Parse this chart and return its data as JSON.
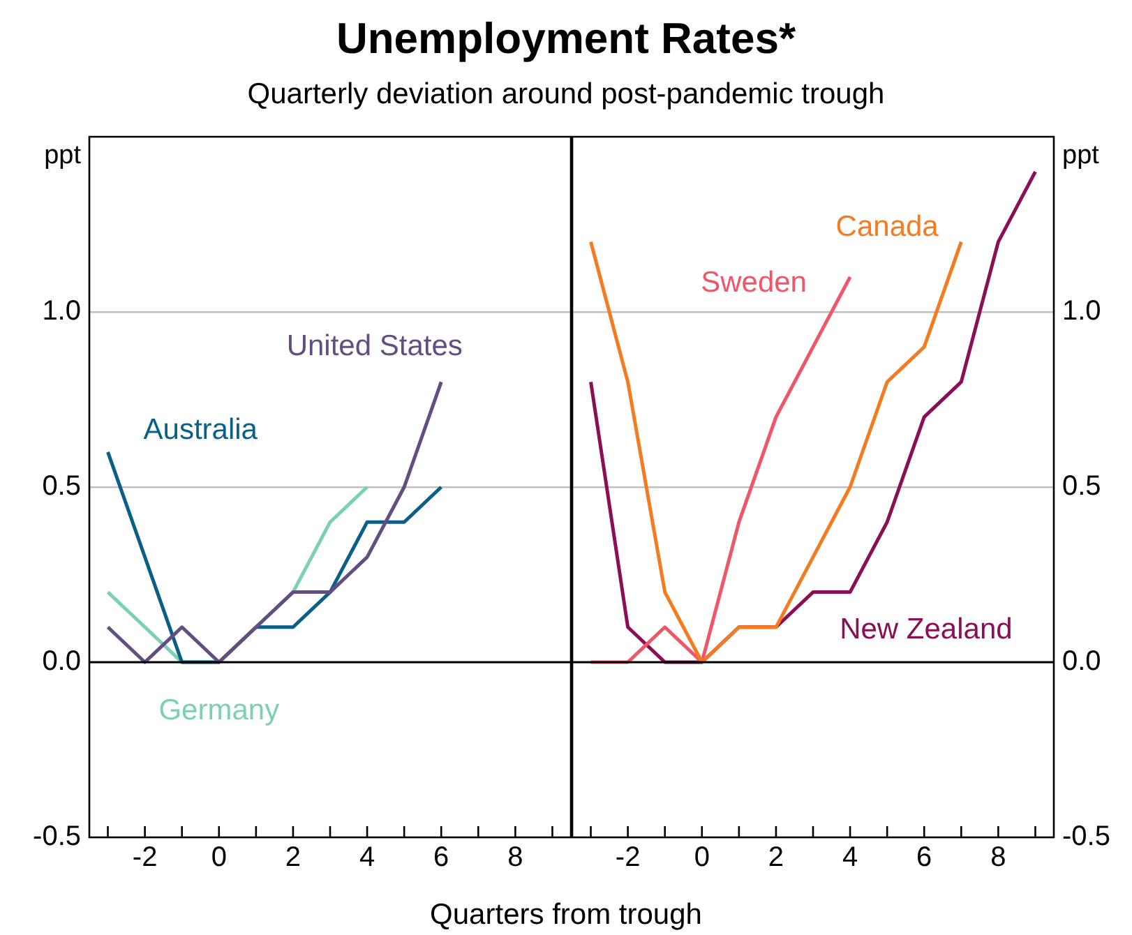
{
  "chart_data": [
    {
      "type": "line",
      "title": "Unemployment Rates*",
      "subtitle": "Quarterly deviation around post-pandemic trough",
      "xlabel": "Quarters from trough",
      "ylabel": "ppt",
      "x": [
        -3,
        -2,
        -1,
        0,
        1,
        2,
        3,
        4,
        5,
        6
      ],
      "series": [
        {
          "name": "United States",
          "color": "#624e80",
          "values": [
            0.1,
            0,
            0.1,
            0,
            0.1,
            0.2,
            0.2,
            0.3,
            0.5,
            0.8
          ]
        },
        {
          "name": "Australia",
          "color": "#0a5f86",
          "values": [
            0.6,
            0.3,
            0,
            0,
            0.1,
            0.1,
            0.2,
            0.4,
            0.4,
            0.5
          ]
        },
        {
          "name": "Germany",
          "color": "#7dd0b4",
          "values": [
            0.2,
            0.1,
            0,
            0,
            0.1,
            0.2,
            0.4,
            0.5,
            null,
            null
          ]
        }
      ],
      "xlim": [
        -3.5,
        9.5
      ],
      "xticks": [
        {
          "value": -3,
          "label": null
        },
        -2,
        {
          "value": -1,
          "label": null
        },
        0,
        {
          "value": 1,
          "label": null
        },
        2,
        {
          "value": 3,
          "label": null
        },
        4,
        {
          "value": 5,
          "label": null
        },
        6,
        {
          "value": 7,
          "label": null
        },
        8,
        {
          "value": 9,
          "label": null
        }
      ],
      "ylim": [
        -0.5,
        1.5
      ],
      "yticks": [
        {
          "value": -0.5,
          "label": "-0.5"
        },
        {
          "value": 0,
          "label": "0.0"
        },
        {
          "value": 0.5,
          "label": "0.5"
        },
        {
          "value": 1,
          "label": "1.0"
        }
      ],
      "grid": "y",
      "ref_lines": [
        {
          "axis": "y",
          "value": 0,
          "color": "#000000"
        }
      ],
      "legend": false,
      "marker": "none",
      "line_style": "solid"
    },
    {
      "type": "line",
      "ylabel": "ppt",
      "x": [
        -3,
        -2,
        -1,
        0,
        1,
        2,
        3,
        4,
        5,
        6,
        7,
        8,
        9
      ],
      "series": [
        {
          "name": "Canada",
          "color": "#f47b20",
          "values": [
            1.2,
            0.8,
            0.2,
            0,
            0.1,
            0.1,
            0.3,
            0.5,
            0.8,
            0.9,
            1.2,
            null,
            null
          ]
        },
        {
          "name": "Sweden",
          "color": "#f0566a",
          "values": [
            0,
            0,
            0.1,
            0,
            0.4,
            0.7,
            0.9,
            1.1,
            null,
            null,
            null,
            null,
            null
          ]
        },
        {
          "name": "New Zealand",
          "color": "#8a0f55",
          "values": [
            0.8,
            0.1,
            0,
            0,
            0.1,
            0.1,
            0.2,
            0.2,
            0.4,
            0.7,
            0.8,
            1.2,
            1.4
          ]
        }
      ],
      "xlim": [
        -3.5,
        9.5
      ],
      "xticks": [
        {
          "value": -3,
          "label": null
        },
        -2,
        {
          "value": -1,
          "label": null
        },
        0,
        {
          "value": 1,
          "label": null
        },
        2,
        {
          "value": 3,
          "label": null
        },
        4,
        {
          "value": 5,
          "label": null
        },
        6,
        {
          "value": 7,
          "label": null
        },
        8,
        {
          "value": 9,
          "label": null
        }
      ],
      "ylim": [
        -0.5,
        1.5
      ],
      "yticks": [
        {
          "value": -0.5,
          "label": "-0.5"
        },
        {
          "value": 0,
          "label": "0.0"
        },
        {
          "value": 0.5,
          "label": "0.5"
        },
        {
          "value": 1,
          "label": "1.0"
        }
      ],
      "grid": "y",
      "ref_lines": [
        {
          "axis": "y",
          "value": 0,
          "color": "#000000"
        }
      ],
      "legend": false,
      "marker": "none",
      "line_style": "solid"
    }
  ]
}
